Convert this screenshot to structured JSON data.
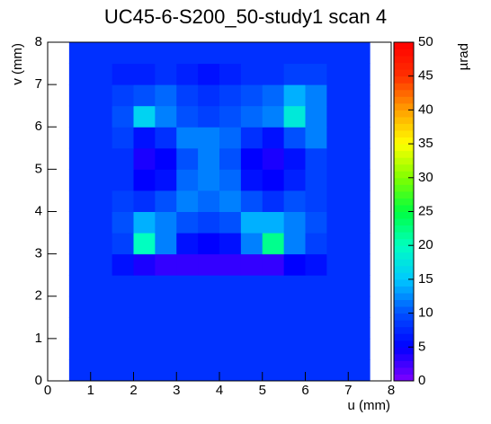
{
  "chart_data": {
    "type": "heatmap",
    "title": "UC45-6-S200_50-study1 scan 4",
    "x_label": "u (mm)",
    "y_label": "v (mm)",
    "z_label": "µrad",
    "xlim": [
      0,
      8
    ],
    "ylim": [
      0,
      8
    ],
    "zlim": [
      0,
      50
    ],
    "xticks": [
      0,
      1,
      2,
      3,
      4,
      5,
      6,
      7,
      8
    ],
    "yticks": [
      0,
      1,
      2,
      3,
      4,
      5,
      6,
      7,
      8
    ],
    "zticks": [
      0,
      5,
      10,
      15,
      20,
      25,
      30,
      35,
      40,
      45,
      50
    ],
    "colormap": [
      "#8000ff",
      "#0000ff",
      "#0050ff",
      "#00c8ff",
      "#00ffc0",
      "#00ff40",
      "#80ff00",
      "#ffff00",
      "#ffa000",
      "#ff3000",
      "#ff0000"
    ],
    "z": [
      [
        null,
        8,
        8,
        8,
        8,
        8,
        8,
        8,
        8,
        8,
        8,
        8,
        8,
        8,
        8,
        null
      ],
      [
        null,
        8,
        8,
        8,
        8,
        8,
        8,
        8,
        8,
        8,
        8,
        8,
        8,
        8,
        8,
        null
      ],
      [
        null,
        8,
        8,
        8,
        8,
        8,
        8,
        8,
        8,
        8,
        8,
        8,
        8,
        8,
        8,
        null
      ],
      [
        null,
        8,
        8,
        8,
        8,
        8,
        8,
        8,
        8,
        8,
        8,
        8,
        8,
        8,
        8,
        null
      ],
      [
        null,
        8,
        8,
        8,
        8,
        8,
        8,
        8,
        8,
        8,
        8,
        8,
        8,
        8,
        8,
        null
      ],
      [
        null,
        8,
        8,
        6,
        4,
        3,
        3,
        3,
        3,
        3,
        3,
        5,
        6,
        8,
        8,
        null
      ],
      [
        null,
        8,
        8,
        9,
        20,
        12,
        6,
        5,
        6,
        12,
        22,
        12,
        9,
        8,
        8,
        null
      ],
      [
        null,
        8,
        8,
        10,
        14,
        12,
        10,
        9,
        10,
        14,
        14,
        12,
        10,
        8,
        8,
        null
      ],
      [
        null,
        8,
        8,
        9,
        8,
        10,
        12,
        11,
        12,
        10,
        8,
        10,
        9,
        8,
        8,
        null
      ],
      [
        null,
        8,
        8,
        8,
        5,
        6,
        11,
        12,
        11,
        6,
        5,
        7,
        9,
        8,
        8,
        null
      ],
      [
        null,
        8,
        8,
        8,
        4,
        5,
        10,
        12,
        10,
        5,
        4,
        6,
        9,
        8,
        8,
        null
      ],
      [
        null,
        8,
        8,
        9,
        6,
        8,
        12,
        12,
        11,
        8,
        6,
        10,
        12,
        8,
        8,
        null
      ],
      [
        null,
        8,
        8,
        10,
        16,
        12,
        10,
        9,
        10,
        11,
        12,
        18,
        12,
        8,
        8,
        null
      ],
      [
        null,
        8,
        8,
        9,
        10,
        11,
        9,
        8,
        9,
        10,
        11,
        14,
        12,
        8,
        8,
        null
      ],
      [
        null,
        8,
        8,
        7,
        7,
        8,
        7,
        6,
        7,
        8,
        8,
        9,
        9,
        8,
        8,
        null
      ],
      [
        null,
        8,
        8,
        8,
        8,
        8,
        8,
        8,
        8,
        8,
        8,
        8,
        8,
        8,
        8,
        null
      ]
    ]
  }
}
